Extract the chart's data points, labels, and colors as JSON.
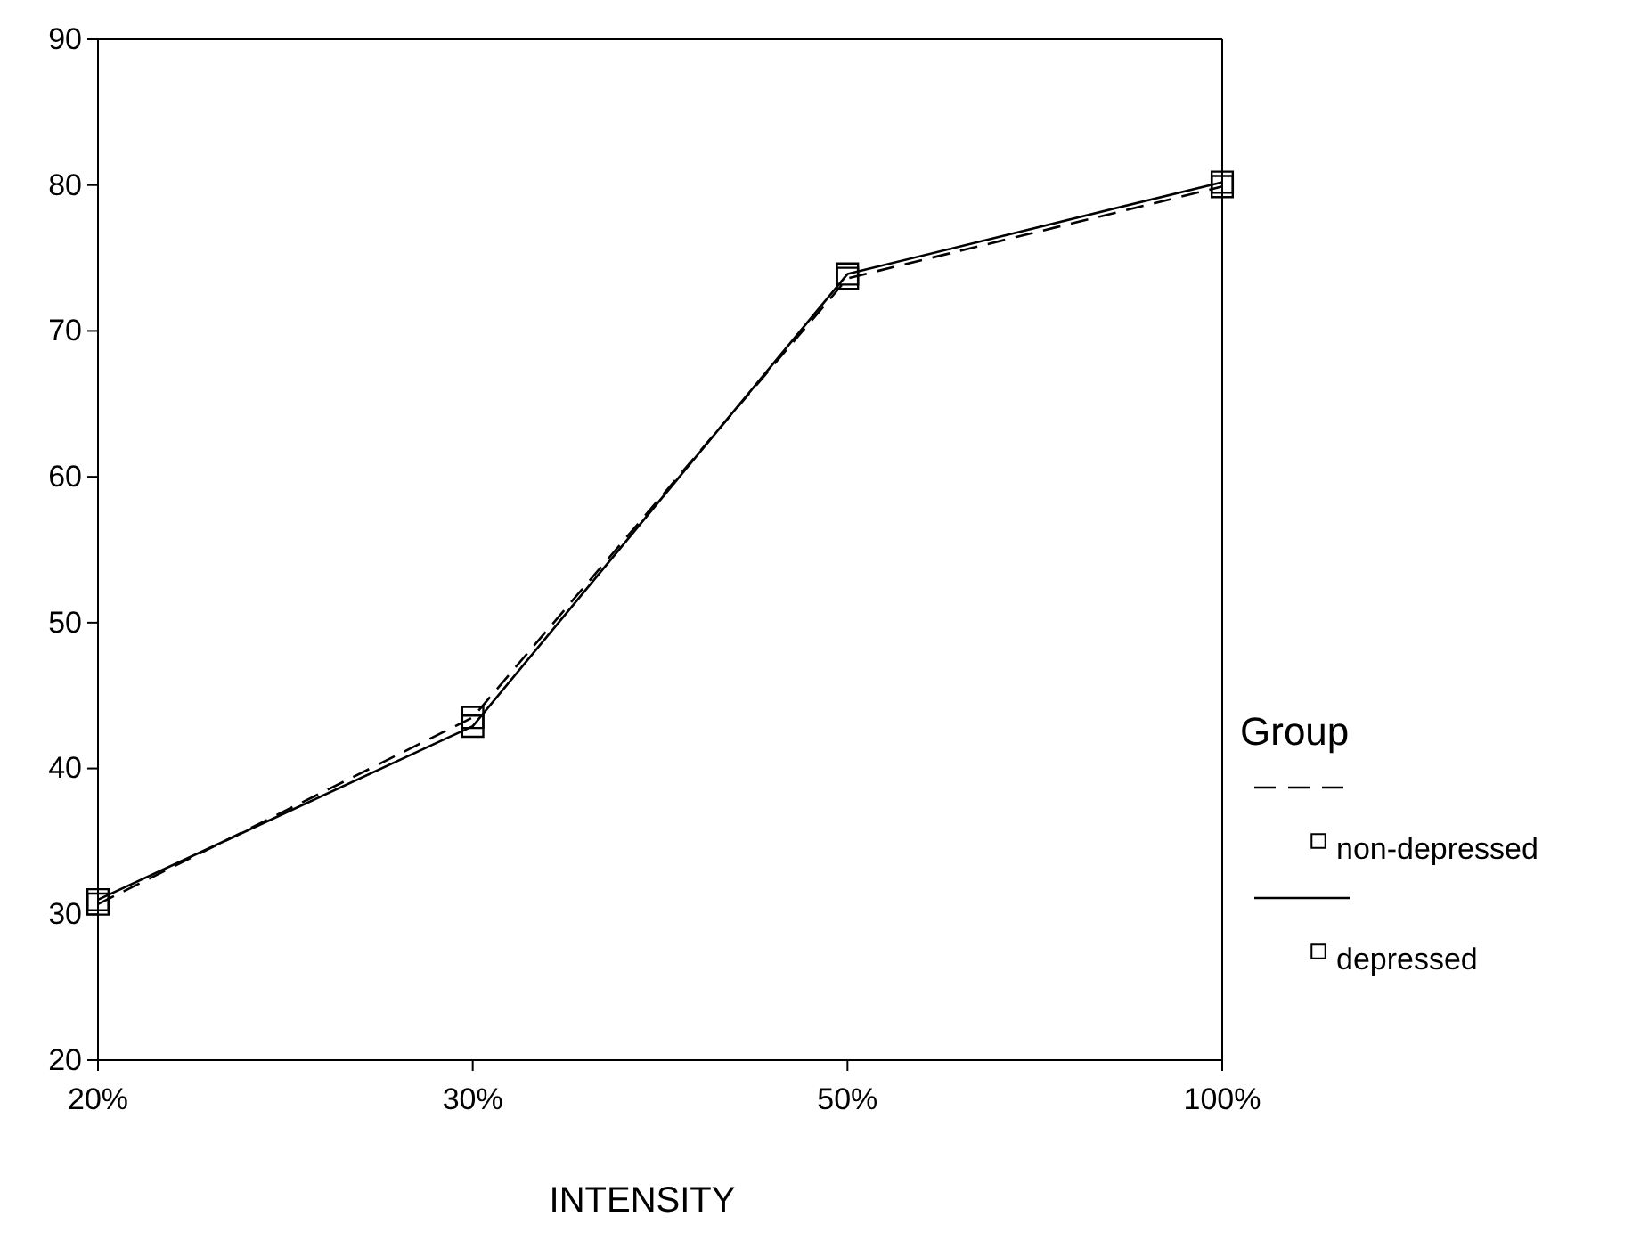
{
  "chart_data": {
    "type": "line",
    "xlabel": "INTENSITY",
    "legend_title": "Group",
    "legend": "right",
    "grid": false,
    "marker": "square",
    "categories": [
      "20%",
      "30%",
      "50%",
      "100%"
    ],
    "ylim": [
      20,
      90
    ],
    "yticks": [
      20,
      30,
      40,
      50,
      60,
      70,
      80,
      90
    ],
    "series": [
      {
        "name": "non-depressed",
        "color": "#000000",
        "line_style": "dashed",
        "values": [
          30.7,
          43.5,
          73.6,
          79.9
        ]
      },
      {
        "name": "depressed",
        "color": "#000000",
        "line_style": "solid",
        "values": [
          31.0,
          42.9,
          73.9,
          80.2
        ]
      }
    ]
  }
}
